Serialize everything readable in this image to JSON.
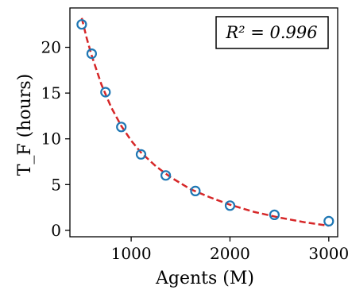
{
  "chart_data": {
    "type": "scatter",
    "xlabel": "Agents (M)",
    "ylabel": "T_F (hours)",
    "xlim": [
      380,
      3090
    ],
    "ylim": [
      -0.7,
      24.3
    ],
    "xticks": [
      1000,
      2000,
      3000
    ],
    "yticks": [
      0,
      5,
      10,
      15,
      20
    ],
    "grid": false,
    "annotation": "R² = 0.996",
    "series": [
      {
        "kind": "scatter",
        "marker": "open-circle",
        "color": "#1f77b4",
        "x": [
          500,
          600,
          740,
          900,
          1100,
          1350,
          1650,
          2000,
          2450,
          3000
        ],
        "y": [
          22.5,
          19.3,
          15.1,
          11.3,
          8.3,
          6.0,
          4.3,
          2.7,
          1.7,
          1.0
        ]
      },
      {
        "kind": "line",
        "style": "dashed",
        "color": "#d62728",
        "x": [
          500,
          550,
          600,
          700,
          800,
          900,
          1000,
          1100,
          1250,
          1400,
          1600,
          1800,
          2000,
          2250,
          2500,
          2750,
          3000
        ],
        "y": [
          23.2,
          21.0,
          19.1,
          15.9,
          13.4,
          11.4,
          9.8,
          8.5,
          7.0,
          5.8,
          4.5,
          3.6,
          2.8,
          2.0,
          1.4,
          0.9,
          0.5
        ]
      }
    ]
  }
}
